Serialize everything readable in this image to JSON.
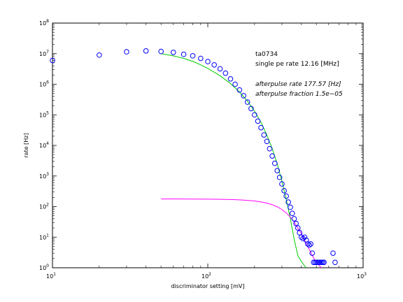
{
  "chart_data": {
    "type": "scatter",
    "title": "",
    "xlabel": "discriminator setting [mV]",
    "ylabel": "rate [Hz]",
    "x_scale": "log",
    "y_scale": "log",
    "xlim": [
      10,
      1000
    ],
    "ylim": [
      1,
      100000000
    ],
    "x_ticks": [
      {
        "value": 10,
        "base": "10",
        "exp": "1"
      },
      {
        "value": 100,
        "base": "10",
        "exp": "2"
      },
      {
        "value": 1000,
        "base": "10",
        "exp": "3"
      }
    ],
    "y_ticks": [
      {
        "value": 1,
        "base": "10",
        "exp": "0"
      },
      {
        "value": 10,
        "base": "10",
        "exp": "1"
      },
      {
        "value": 100,
        "base": "10",
        "exp": "2"
      },
      {
        "value": 1000,
        "base": "10",
        "exp": "3"
      },
      {
        "value": 10000,
        "base": "10",
        "exp": "4"
      },
      {
        "value": 100000,
        "base": "10",
        "exp": "5"
      },
      {
        "value": 1000000,
        "base": "10",
        "exp": "6"
      },
      {
        "value": 10000000,
        "base": "10",
        "exp": "7"
      },
      {
        "value": 100000000,
        "base": "10",
        "exp": "8"
      }
    ],
    "grid": false,
    "series": [
      {
        "kind": "points",
        "marker": "open-circle",
        "color": "#0000ff",
        "x": [
          10,
          20,
          30,
          40,
          50,
          60,
          70,
          80,
          90,
          100,
          110,
          120,
          130,
          140,
          150,
          160,
          170,
          180,
          190,
          200,
          210,
          220,
          230,
          240,
          250,
          260,
          270,
          280,
          290,
          300,
          310,
          320,
          330,
          340,
          350,
          360,
          370,
          380,
          390,
          400,
          410,
          420,
          430,
          440,
          450,
          460,
          470,
          480,
          490,
          500,
          510,
          520,
          530,
          540,
          550,
          560,
          640,
          660
        ],
        "y": [
          6000000,
          9000000,
          11500000,
          12300000,
          11800000,
          11000000,
          9500000,
          8500000,
          7000000,
          5500000,
          4300000,
          3200000,
          2300000,
          1500000,
          1000000,
          650000,
          420000,
          260000,
          160000,
          100000,
          62000,
          38000,
          22000,
          13500,
          7800,
          4500,
          2600,
          1500,
          900,
          550,
          330,
          220,
          140,
          95,
          60,
          40,
          28,
          20,
          14,
          10,
          9,
          10,
          8,
          6,
          5.5,
          6,
          3,
          1.5,
          1.5,
          1.5,
          1.5,
          1.5,
          1.5,
          1.5,
          1.5,
          1.5,
          3,
          1.5
        ]
      },
      {
        "kind": "line",
        "color": "#00cc00",
        "x": [
          50,
          60,
          70,
          80,
          90,
          100,
          120,
          140,
          160,
          180,
          200,
          220,
          240,
          260,
          280,
          300,
          320,
          340,
          360,
          380,
          400,
          420,
          430
        ],
        "y": [
          10000000,
          8500000,
          7000000,
          5600000,
          4300000,
          3300000,
          1900000,
          1050000,
          560000,
          280000,
          130000,
          57000,
          22000,
          7800,
          2500,
          680,
          170,
          40,
          8.5,
          2.5,
          1.6,
          1.15,
          1
        ]
      },
      {
        "kind": "line",
        "color": "#ff00ff",
        "x": [
          50,
          60,
          80,
          100,
          120,
          140,
          160,
          180,
          200,
          220,
          240,
          260,
          280,
          300,
          320,
          340,
          360,
          380,
          400,
          420,
          440,
          460,
          480,
          500,
          520,
          540
        ],
        "y": [
          177,
          177,
          176,
          175,
          173,
          170,
          166,
          160,
          152,
          142,
          130,
          115,
          98,
          80,
          62,
          45,
          31,
          20,
          13,
          8,
          5,
          3.2,
          2.1,
          1.5,
          1.2,
          1
        ]
      }
    ],
    "annotations": [
      {
        "text": "ta0734",
        "italic": false
      },
      {
        "text": "single pe rate 12.16 [MHz]",
        "italic": false
      },
      {
        "text": "afterpulse rate 177.57 [Hz]",
        "italic": true
      },
      {
        "text": "afterpulse fraction 1.5e−05",
        "italic": true
      }
    ]
  }
}
